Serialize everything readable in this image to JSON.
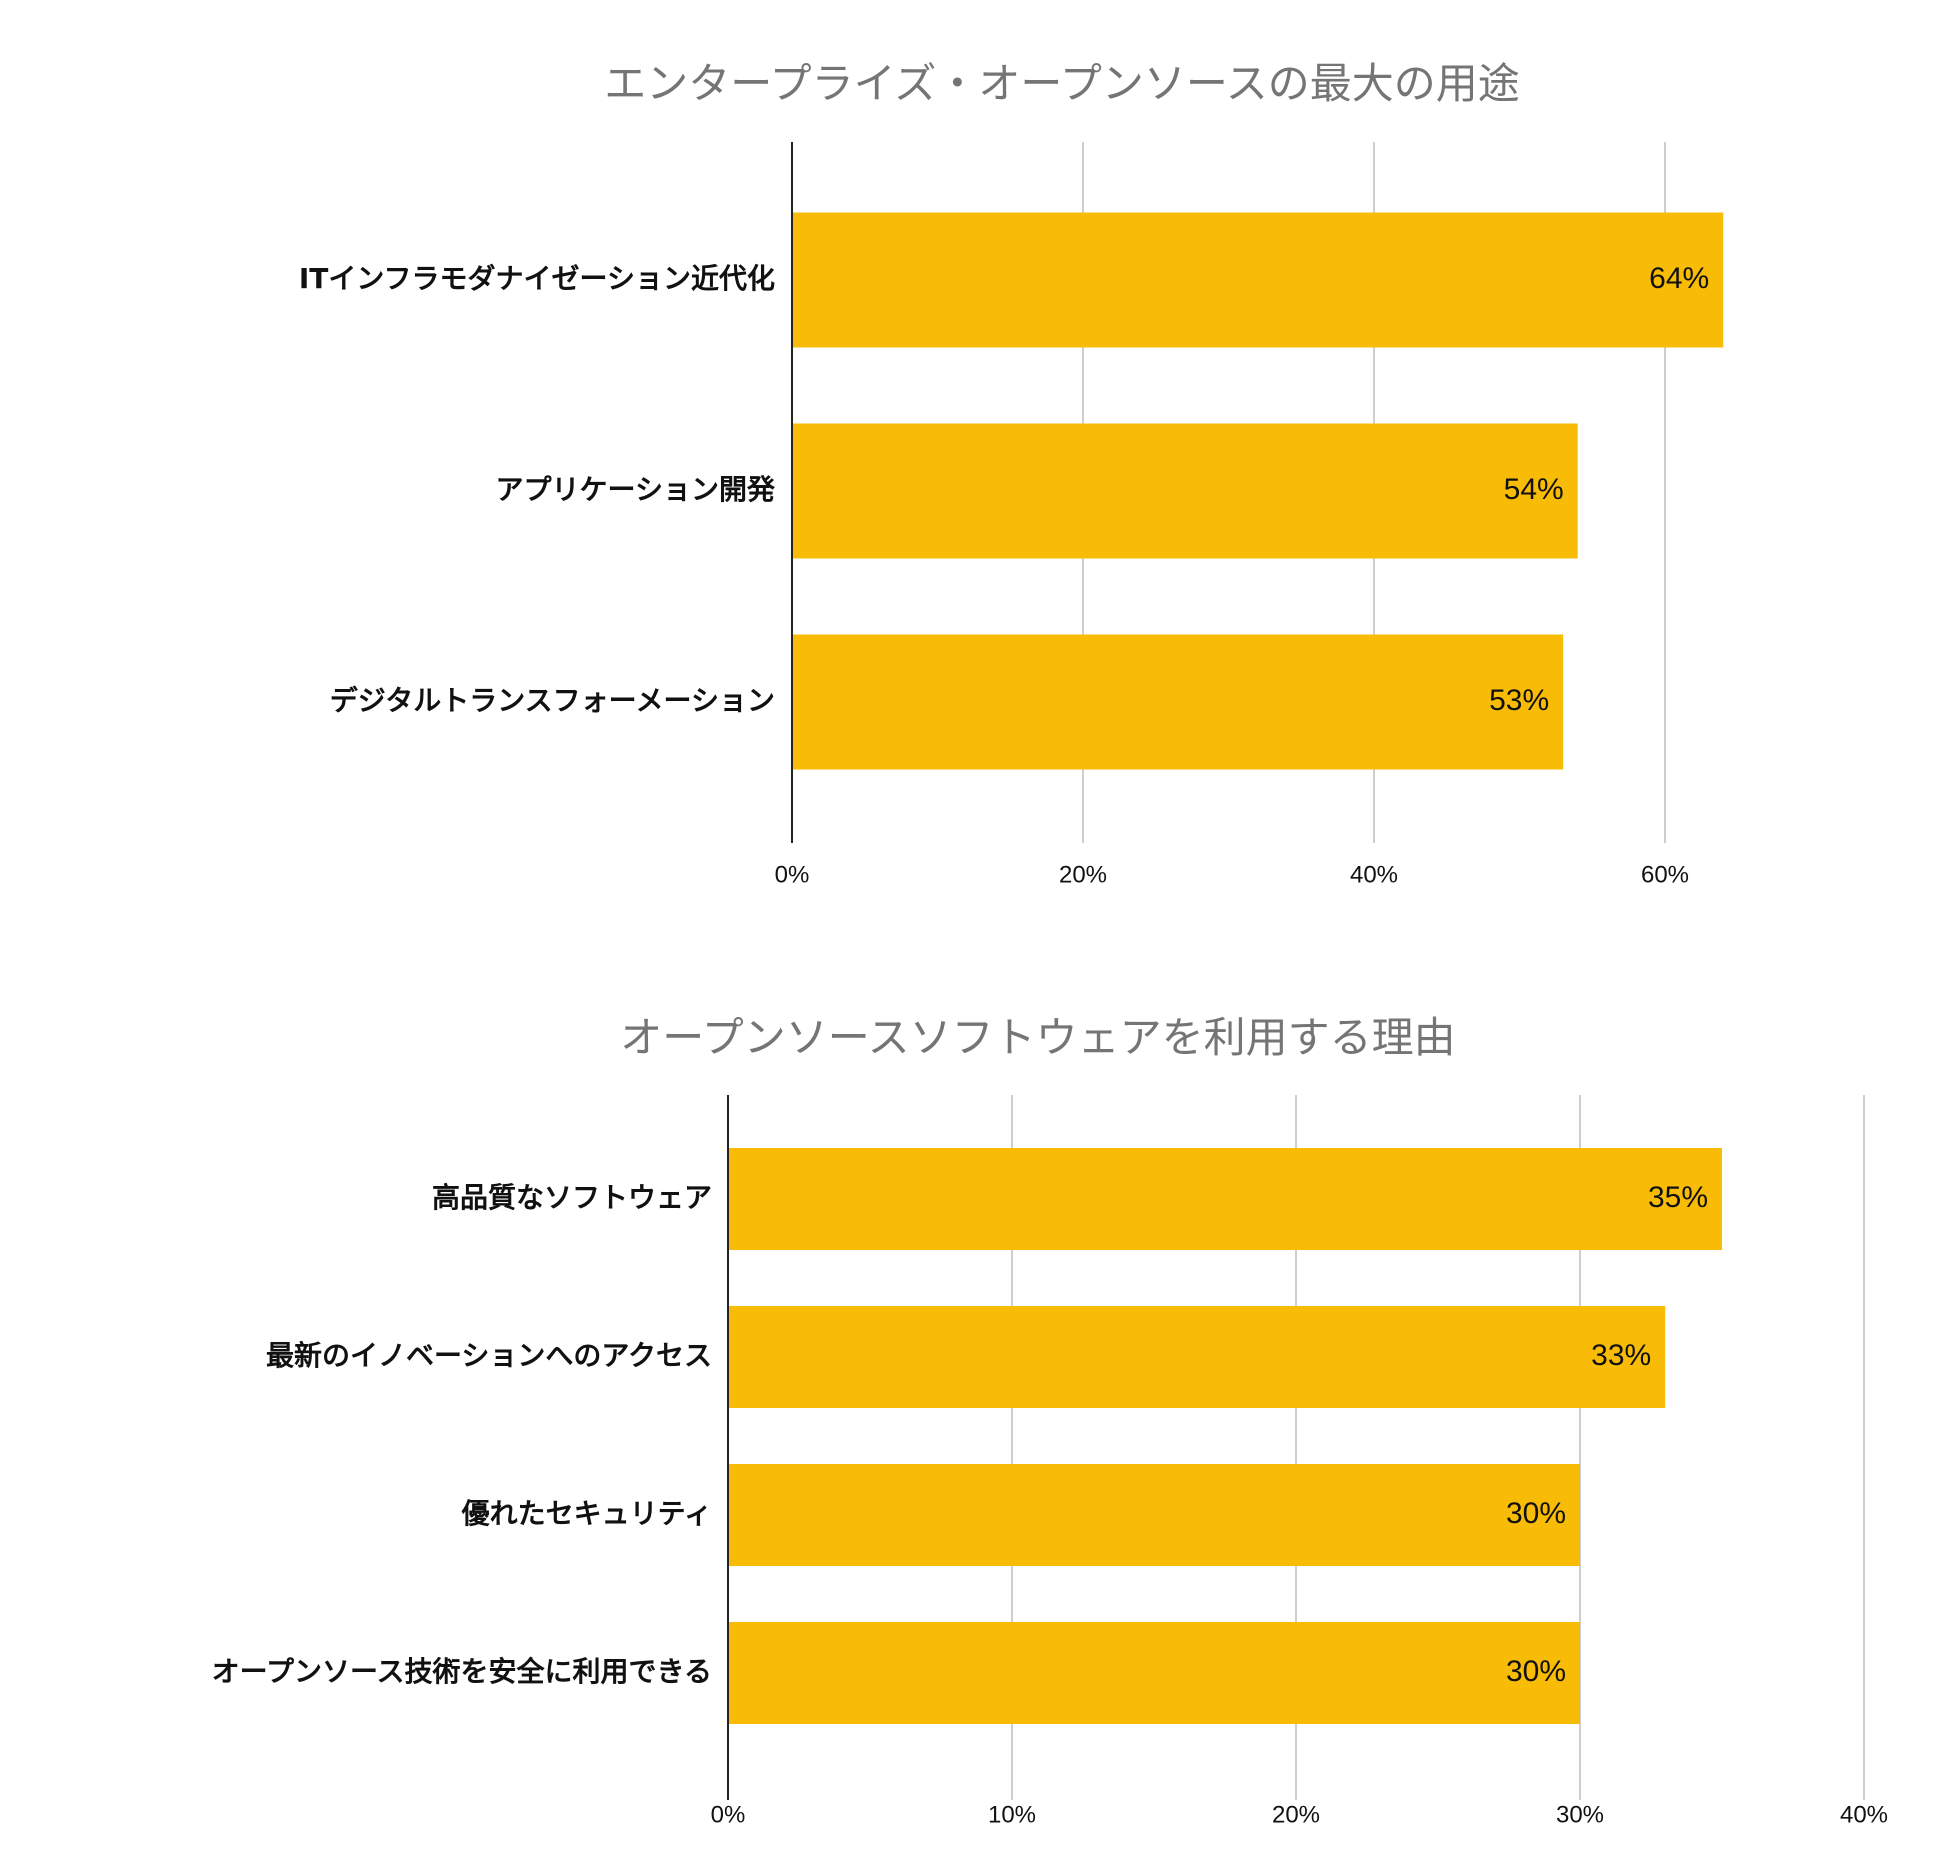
{
  "colors": {
    "bar": "#F9BC06",
    "gridline": "#BDBDBD",
    "axis": "#222222",
    "title": "#757575",
    "text": "#111111"
  },
  "chart_data": [
    {
      "type": "bar",
      "orientation": "horizontal",
      "title": "エンタープライズ・オープンソースの最大の用途",
      "categories": [
        "ITインフラモダナイゼーション近代化",
        "アプリケーション開発",
        "デジタルトランスフォーメーション"
      ],
      "values": [
        64,
        54,
        53
      ],
      "data_labels": [
        "64%",
        "54%",
        "53%"
      ],
      "x_ticks": [
        0,
        20,
        40,
        60
      ],
      "x_tick_labels": [
        "0%",
        "20%",
        "40%",
        "60%"
      ],
      "xlim": [
        0,
        64
      ],
      "grid": true,
      "legend": "none"
    },
    {
      "type": "bar",
      "orientation": "horizontal",
      "title": "オープンソースソフトウェアを利用する理由",
      "categories": [
        "高品質なソフトウェア",
        "最新のイノベーションへのアクセス",
        "優れたセキュリティ",
        "オープンソース技術を安全に利用できる"
      ],
      "values": [
        35,
        33,
        30,
        30
      ],
      "data_labels": [
        "35%",
        "33%",
        "30%",
        "30%"
      ],
      "x_ticks": [
        0,
        10,
        20,
        30,
        40
      ],
      "x_tick_labels": [
        "0%",
        "10%",
        "20%",
        "30%",
        "40%"
      ],
      "xlim": [
        0,
        40
      ],
      "grid": true,
      "legend": "none"
    }
  ]
}
